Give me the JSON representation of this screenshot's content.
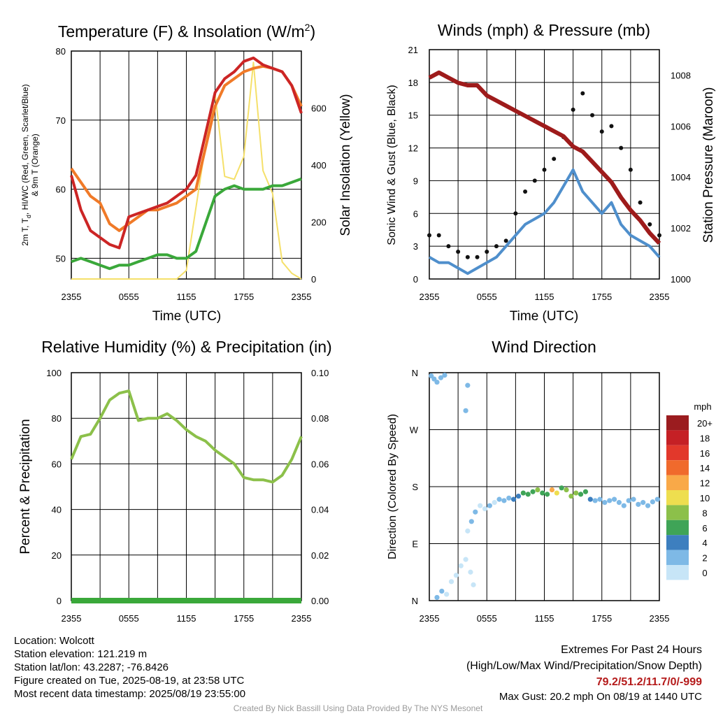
{
  "chart_data": [
    {
      "type": "line",
      "title_prefix": "Temperature (F) & Insolation (W/m",
      "title_sup": "2",
      "title_suffix": ")",
      "xlabel": "Time (UTC)",
      "ylabel_left_lines": [
        "2m T, T",
        "d",
        ", HI/WC (Red, Green, Scarlet/Blue)",
        "& 9m T (Orange)"
      ],
      "ylabel_right": "Solar Insolation (Yellow)",
      "x_ticks": [
        "2355",
        "0555",
        "1155",
        "1755",
        "2355"
      ],
      "ylim_left": [
        47,
        80
      ],
      "yticks_left": [
        50,
        60,
        70,
        80
      ],
      "ylim_right": [
        0,
        800
      ],
      "yticks_right": [
        0,
        200,
        400,
        600
      ],
      "x_hours": [
        0,
        1,
        2,
        3,
        4,
        5,
        6,
        7,
        8,
        9,
        10,
        11,
        12,
        13,
        14,
        15,
        16,
        17,
        18,
        19,
        20,
        21,
        22,
        23,
        24
      ],
      "series": [
        {
          "color": "#f07a28",
          "axis": "left",
          "width": 4,
          "values": [
            63,
            61,
            59,
            58,
            55,
            54,
            55,
            56,
            57,
            57,
            57.5,
            58,
            59,
            60,
            66,
            72,
            75,
            76,
            77,
            77.5,
            77.8,
            77.5,
            77,
            75,
            72
          ]
        },
        {
          "color": "#cc2525",
          "axis": "left",
          "width": 4,
          "values": [
            62,
            57,
            54,
            53,
            52,
            51.5,
            56,
            56.5,
            57,
            57.5,
            58,
            59,
            60,
            62,
            68,
            74,
            76,
            77,
            78.5,
            79,
            78,
            77.5,
            77,
            75,
            71
          ]
        },
        {
          "color": "#3aa83a",
          "axis": "left",
          "width": 4,
          "values": [
            49.5,
            50,
            49.5,
            49,
            48.5,
            49,
            49,
            49.5,
            50,
            50.5,
            50.5,
            50,
            50,
            51,
            55,
            59,
            60,
            60.5,
            60,
            60,
            60,
            60.5,
            60.5,
            61,
            61.5
          ]
        },
        {
          "color": "#f5e06a",
          "axis": "right",
          "width": 2,
          "values": [
            0,
            0,
            0,
            0,
            0,
            0,
            0,
            0,
            0,
            0,
            0,
            0,
            30,
            250,
            470,
            650,
            360,
            350,
            430,
            760,
            380,
            300,
            60,
            20,
            0
          ]
        }
      ]
    },
    {
      "type": "scatter",
      "title": "Winds (mph) & Pressure (mb)",
      "xlabel": "Time (UTC)",
      "ylabel_left": "Sonic Wind & Gust (Blue, Black)",
      "ylabel_right": "Station Pressure (Maroon)",
      "x_ticks": [
        "2355",
        "0555",
        "1155",
        "1755",
        "2355"
      ],
      "ylim_left": [
        0,
        21
      ],
      "yticks_left": [
        0,
        3,
        6,
        9,
        12,
        15,
        18,
        21
      ],
      "ylim_right": [
        1000,
        1009
      ],
      "yticks_right": [
        1000,
        1002,
        1004,
        1006,
        1008
      ],
      "x_hours": [
        0,
        1,
        2,
        3,
        4,
        5,
        6,
        7,
        8,
        9,
        10,
        11,
        12,
        13,
        14,
        15,
        16,
        17,
        18,
        19,
        20,
        21,
        22,
        23,
        24
      ],
      "series": [
        {
          "color": "#4f8fcc",
          "kind": "line",
          "axis": "left",
          "values": [
            2,
            1.5,
            1.5,
            1,
            0.5,
            1,
            1.5,
            2,
            3,
            4,
            5,
            5.5,
            6,
            7,
            8.5,
            10,
            8,
            7,
            6,
            7,
            5,
            4,
            3.5,
            3,
            2
          ]
        },
        {
          "color": "#111111",
          "kind": "points",
          "axis": "left",
          "values": [
            4,
            4,
            3,
            2.5,
            2,
            2,
            2.5,
            3,
            3.5,
            6,
            8,
            9,
            10,
            11,
            13,
            15.5,
            17,
            15,
            13.5,
            14,
            12,
            10,
            7,
            5,
            4
          ]
        },
        {
          "color": "#9e1b1b",
          "kind": "line",
          "axis": "right",
          "values": [
            1007.9,
            1008.1,
            1007.9,
            1007.7,
            1007.6,
            1007.6,
            1007.2,
            1007,
            1006.8,
            1006.6,
            1006.4,
            1006.2,
            1006,
            1005.8,
            1005.6,
            1005.2,
            1005,
            1004.6,
            1004.2,
            1003.8,
            1003.2,
            1002.7,
            1002.3,
            1001.8,
            1001.4
          ]
        }
      ]
    },
    {
      "type": "line",
      "title": "Relative Humidity (%) & Precipitation (in)",
      "xlabel": "",
      "ylabel": "Percent & Precipitation",
      "x_ticks": [
        "2355",
        "0555",
        "1155",
        "1755",
        "2355"
      ],
      "ylim_left": [
        0,
        100
      ],
      "yticks_left": [
        0,
        20,
        40,
        60,
        80,
        100
      ],
      "ylim_right": [
        0,
        0.1
      ],
      "yticks_right": [
        "0.00",
        "0.02",
        "0.04",
        "0.06",
        "0.08",
        "0.10"
      ],
      "x_hours": [
        0,
        1,
        2,
        3,
        4,
        5,
        6,
        7,
        8,
        9,
        10,
        11,
        12,
        13,
        14,
        15,
        16,
        17,
        18,
        19,
        20,
        21,
        22,
        23,
        24
      ],
      "series": [
        {
          "color": "#8cc04a",
          "axis": "left",
          "values": [
            62,
            72,
            73,
            80,
            88,
            91,
            92,
            79,
            80,
            80,
            82,
            79,
            75,
            72,
            70,
            66,
            63,
            60,
            54,
            53,
            53,
            52,
            55,
            62,
            72
          ]
        },
        {
          "color": "#3aa83a",
          "axis": "right",
          "values": [
            0,
            0,
            0,
            0,
            0,
            0,
            0,
            0,
            0,
            0,
            0,
            0,
            0,
            0,
            0,
            0,
            0,
            0,
            0,
            0,
            0,
            0,
            0,
            0,
            0
          ]
        }
      ]
    },
    {
      "type": "scatter",
      "title": "Wind Direction",
      "xlabel": "",
      "ylabel": "Direction (Colored By Speed)",
      "x_ticks": [
        "2355",
        "0555",
        "1155",
        "1755",
        "2355"
      ],
      "y_ticks": [
        "N",
        "E",
        "S",
        "W",
        "N"
      ],
      "ylim": [
        0,
        360
      ],
      "points": [
        [
          0.2,
          355,
          2
        ],
        [
          0.5,
          350,
          3
        ],
        [
          0.8,
          345,
          2
        ],
        [
          1.2,
          352,
          3
        ],
        [
          1.6,
          356,
          2
        ],
        [
          4.0,
          340,
          3
        ],
        [
          3.8,
          300,
          2
        ],
        [
          0.8,
          5,
          3
        ],
        [
          1.3,
          15,
          2
        ],
        [
          1.8,
          10,
          1
        ],
        [
          2.3,
          30,
          1
        ],
        [
          2.8,
          40,
          1
        ],
        [
          3.3,
          55,
          1
        ],
        [
          3.8,
          65,
          1
        ],
        [
          4.3,
          45,
          1
        ],
        [
          4.6,
          25,
          1
        ],
        [
          4.0,
          110,
          1
        ],
        [
          4.4,
          125,
          2
        ],
        [
          4.8,
          140,
          2
        ],
        [
          5.3,
          150,
          1
        ],
        [
          5.8,
          145,
          1
        ],
        [
          6.3,
          150,
          2
        ],
        [
          6.8,
          155,
          1
        ],
        [
          7.3,
          160,
          3
        ],
        [
          7.8,
          158,
          3
        ],
        [
          8.3,
          162,
          3
        ],
        [
          8.8,
          160,
          4
        ],
        [
          9.3,
          165,
          5
        ],
        [
          9.8,
          170,
          6
        ],
        [
          10.3,
          168,
          7
        ],
        [
          10.8,
          172,
          6
        ],
        [
          11.3,
          175,
          8
        ],
        [
          11.8,
          170,
          6
        ],
        [
          12.3,
          168,
          7
        ],
        [
          12.8,
          175,
          12
        ],
        [
          13.3,
          170,
          10
        ],
        [
          13.8,
          178,
          6
        ],
        [
          14.3,
          175,
          8
        ],
        [
          14.8,
          165,
          9
        ],
        [
          15.3,
          170,
          8
        ],
        [
          15.8,
          168,
          6
        ],
        [
          16.3,
          172,
          7
        ],
        [
          16.8,
          160,
          4
        ],
        [
          17.3,
          158,
          3
        ],
        [
          17.8,
          160,
          3
        ],
        [
          18.3,
          155,
          2
        ],
        [
          18.8,
          158,
          3
        ],
        [
          19.3,
          160,
          2
        ],
        [
          19.8,
          155,
          2
        ],
        [
          20.3,
          150,
          2
        ],
        [
          20.8,
          158,
          3
        ],
        [
          21.3,
          160,
          2
        ],
        [
          21.8,
          152,
          2
        ],
        [
          22.3,
          155,
          3
        ],
        [
          22.8,
          150,
          2
        ],
        [
          23.3,
          156,
          2
        ],
        [
          23.8,
          160,
          2
        ]
      ],
      "legend": {
        "title": "mph",
        "labels": [
          "20+",
          "18",
          "16",
          "14",
          "12",
          "10",
          "8",
          "6",
          "4",
          "2",
          "0"
        ],
        "colors": [
          "#9b1c1f",
          "#c52025",
          "#e2382b",
          "#f06a2c",
          "#f9a948",
          "#eede4f",
          "#8cc04a",
          "#3fa457",
          "#3d7fbf",
          "#7eb9e6",
          "#c7e5f7"
        ]
      }
    }
  ],
  "footer": {
    "location": "Location: Wolcott",
    "elevation": "Station elevation: 121.219 m",
    "latlon": "Station lat/lon: 43.2287; -76.8426",
    "created": "Figure created on Tue, 2025-08-19, at 23:58 UTC",
    "recent": "Most recent data timestamp: 2025/08/19 23:55:00",
    "extremes_title": "Extremes For Past 24 Hours",
    "extremes_sub": "(High/Low/Max Wind/Precipitation/Snow Depth)",
    "extremes_values": "79.2/51.2/11.7/0/-999",
    "max_gust": "Max Gust: 20.2 mph On 08/19 at 1440 UTC",
    "credit": "Created By Nick Bassill Using Data Provided By The NYS Mesonet"
  }
}
